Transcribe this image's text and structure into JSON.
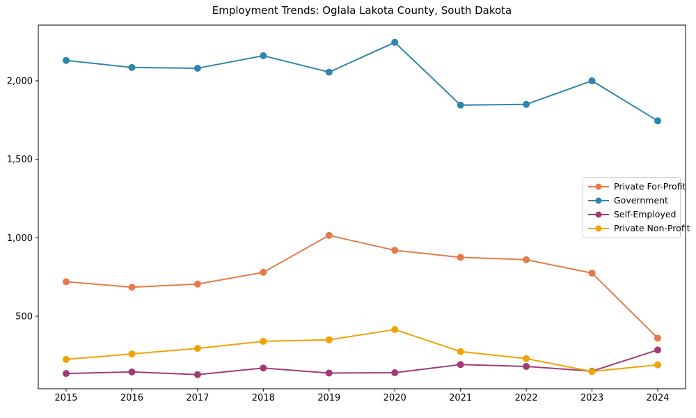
{
  "chart_data": {
    "type": "line",
    "title": "Employment Trends: Oglala Lakota County, South Dakota",
    "xlabel": "",
    "ylabel": "",
    "x": [
      2015,
      2016,
      2017,
      2018,
      2019,
      2020,
      2021,
      2022,
      2023,
      2024
    ],
    "xtick_labels": [
      "2015",
      "2016",
      "2017",
      "2018",
      "2019",
      "2020",
      "2021",
      "2022",
      "2023",
      "2024"
    ],
    "series": [
      {
        "name": "Private For-Profit",
        "color": "#E8794A",
        "values": [
          720,
          685,
          705,
          780,
          1015,
          920,
          875,
          860,
          775,
          360
        ]
      },
      {
        "name": "Government",
        "color": "#2E86AB",
        "values": [
          2130,
          2085,
          2080,
          2160,
          2055,
          2245,
          1845,
          1850,
          2000,
          1745
        ]
      },
      {
        "name": "Self-Employed",
        "color": "#A23B72",
        "values": [
          135,
          145,
          128,
          170,
          138,
          140,
          192,
          180,
          150,
          285
        ]
      },
      {
        "name": "Private Non-Profit",
        "color": "#F2A104",
        "values": [
          225,
          260,
          295,
          340,
          350,
          415,
          275,
          230,
          148,
          190
        ]
      }
    ],
    "ylim": [
      38,
      2355
    ],
    "yticks": {
      "values": [
        500,
        1000,
        1500,
        2000
      ],
      "labels": [
        "500",
        "1,000",
        "1,500",
        "2,000"
      ]
    },
    "grid": false,
    "marker": "circle",
    "legend_position": "center right",
    "axis_color": "#000000",
    "background_color": "#ffffff"
  }
}
